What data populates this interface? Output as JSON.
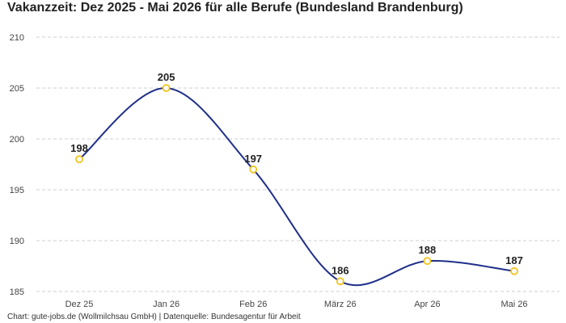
{
  "chart_data": {
    "type": "line",
    "title": "Vakanzzeit: Dez 2025 - Mai 2026 für alle Berufe (Bundesland Brandenburg)",
    "xlabel": "",
    "ylabel": "",
    "categories": [
      "Dez 25",
      "Jan 26",
      "Feb 26",
      "März 26",
      "Apr 26",
      "Mai 26"
    ],
    "series": [
      {
        "values": [
          198,
          205,
          197,
          186,
          188,
          187
        ]
      }
    ],
    "yticks": [
      185,
      190,
      195,
      200,
      205,
      210
    ],
    "ylim": [
      184.5,
      210
    ],
    "grid": true,
    "legend": "none",
    "colors": {
      "line": "#1f2f8a",
      "marker_stroke": "#f2c31a",
      "marker_fill": "#ffffff"
    }
  },
  "footer": "Chart: gute-jobs.de (Wollmilchsau GmbH) | Datenquelle: Bundesagentur für Arbeit"
}
